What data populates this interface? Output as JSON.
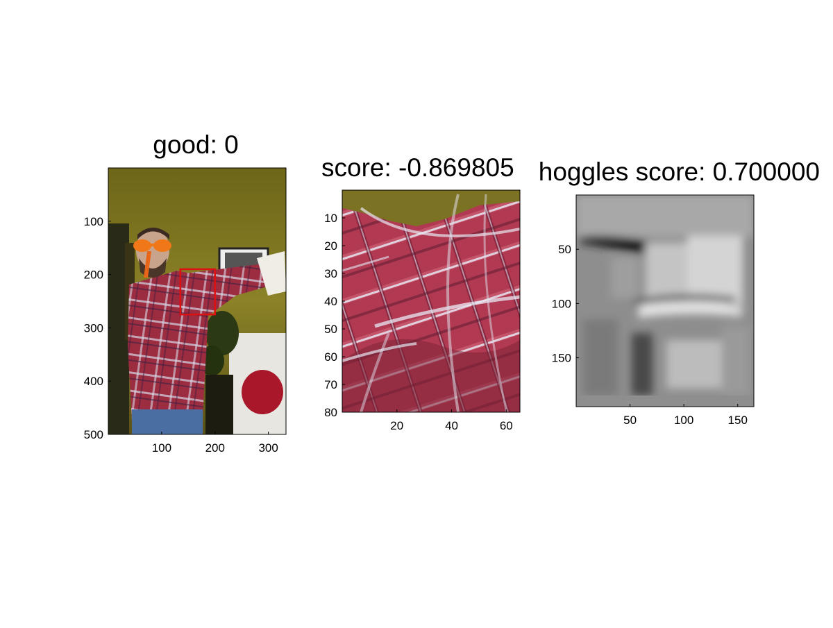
{
  "panels": [
    {
      "title": "good: 0",
      "image_desc": "color photo of a man in a red plaid shirt with arm outstretched, red bounding box on arm",
      "x_ticks": [
        "100",
        "200",
        "300"
      ],
      "y_ticks": [
        "100",
        "200",
        "300",
        "400",
        "500"
      ],
      "x_range": [
        0,
        333
      ],
      "y_range": [
        0,
        500
      ],
      "box": {
        "x": [
          135,
          200
        ],
        "y": [
          190,
          275
        ]
      }
    },
    {
      "title": "score: -0.869805",
      "image_desc": "zoomed crop of red plaid fabric",
      "x_ticks": [
        "20",
        "40",
        "60"
      ],
      "y_ticks": [
        "10",
        "20",
        "30",
        "40",
        "50",
        "60",
        "70",
        "80"
      ],
      "x_range": [
        0,
        65
      ],
      "y_range": [
        0,
        80
      ]
    },
    {
      "title": "hoggles score: 0.700000",
      "image_desc": "grayscale HOG inverse visualization",
      "x_ticks": [
        "50",
        "100",
        "150"
      ],
      "y_ticks": [
        "50",
        "100",
        "150"
      ],
      "x_range": [
        0,
        165
      ],
      "y_range": [
        0,
        195
      ]
    }
  ],
  "colors": {
    "box": "#dd1111",
    "plaid_red": "#b8374e",
    "wall": "#8a7e24"
  }
}
